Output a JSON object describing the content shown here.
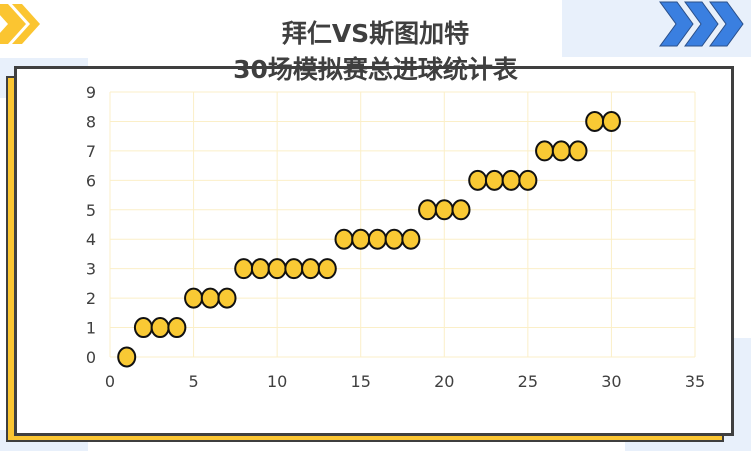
{
  "colors": {
    "marker": "#F9C934",
    "accent_yellow": "#FBC531",
    "accent_blue": "#3A7FE0",
    "panel_blue": "#E8F0FB",
    "frame": "#3f3f3f",
    "grid": "#FBEFC8"
  },
  "chart_data": {
    "type": "scatter",
    "title": "拜仁VS斯图加特\n30场模拟赛总进球统计表",
    "title_lines": [
      "拜仁VS斯图加特",
      "30场模拟赛总进球统计表"
    ],
    "xlabel": "",
    "ylabel": "",
    "xlim": [
      0,
      35
    ],
    "ylim": [
      0,
      9
    ],
    "xticks": [
      0,
      5,
      10,
      15,
      20,
      25,
      30,
      35
    ],
    "yticks": [
      0,
      1,
      2,
      3,
      4,
      5,
      6,
      7,
      8,
      9
    ],
    "grid": true,
    "x": [
      1,
      2,
      3,
      4,
      5,
      6,
      7,
      8,
      9,
      10,
      11,
      12,
      13,
      14,
      15,
      16,
      17,
      18,
      19,
      20,
      21,
      22,
      23,
      24,
      25,
      26,
      27,
      28,
      29,
      30
    ],
    "y": [
      0,
      1,
      1,
      1,
      2,
      2,
      2,
      3,
      3,
      3,
      3,
      3,
      3,
      4,
      4,
      4,
      4,
      4,
      5,
      5,
      5,
      6,
      6,
      6,
      6,
      7,
      7,
      7,
      8,
      8
    ]
  }
}
